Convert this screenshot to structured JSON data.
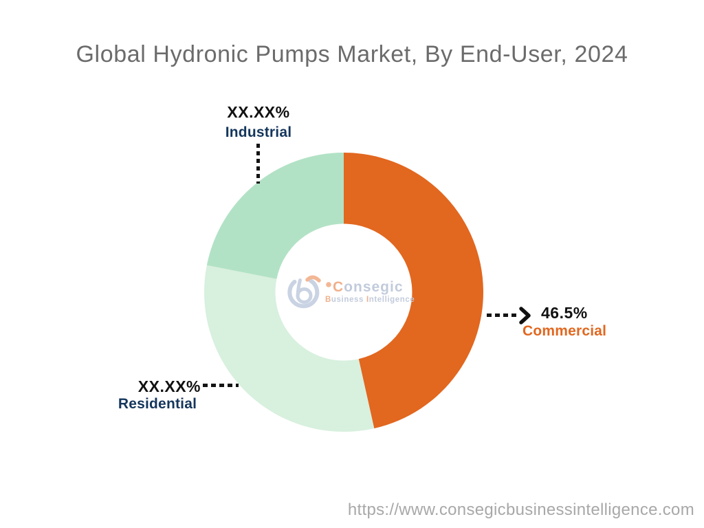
{
  "page": {
    "title": "Global Hydronic Pumps Market, By End-User, 2024",
    "title_color": "#6B6B6B",
    "background_color": "#FFFFFF"
  },
  "chart_data": {
    "type": "pie",
    "subtype": "donut",
    "title": "Global Hydronic Pumps Market, By End-User, 2024",
    "unit": "percent",
    "direction": "clockwise",
    "start_angle_deg": 0,
    "inner_radius_ratio": 0.49,
    "legend_position": "none",
    "label_style": "external callouts with black dotted leader lines",
    "note": "Residential and Industrial percentages are masked as XX.XX% in the image; their numeric values are estimated from arc angles.",
    "value_text_color": "#111111",
    "segments": [
      {
        "name": "Commercial",
        "value": 46.5,
        "display_value": "46.5%",
        "color": "#E2671F",
        "label_color": "#E2671F"
      },
      {
        "name": "Residential",
        "value": 31.6,
        "display_value": "XX.XX%",
        "color": "#D8F0DE",
        "label_color": "#14365C"
      },
      {
        "name": "Industrial",
        "value": 21.9,
        "display_value": "XX.XX%",
        "color": "#B2E2C5",
        "label_color": "#14365C"
      }
    ]
  },
  "watermark": {
    "brand_first_letter": "C",
    "brand_rest": "onsegic",
    "sub_b": "B",
    "sub_usiness": "usiness",
    "sub_i": "I",
    "sub_ntelligence": "ntelligence",
    "text_color": "#C2CBDC",
    "accent_color": "#F0B08C"
  },
  "footer": {
    "url": "https://www.consegicbusinessintelligence.com",
    "color": "#A8A8A8"
  }
}
